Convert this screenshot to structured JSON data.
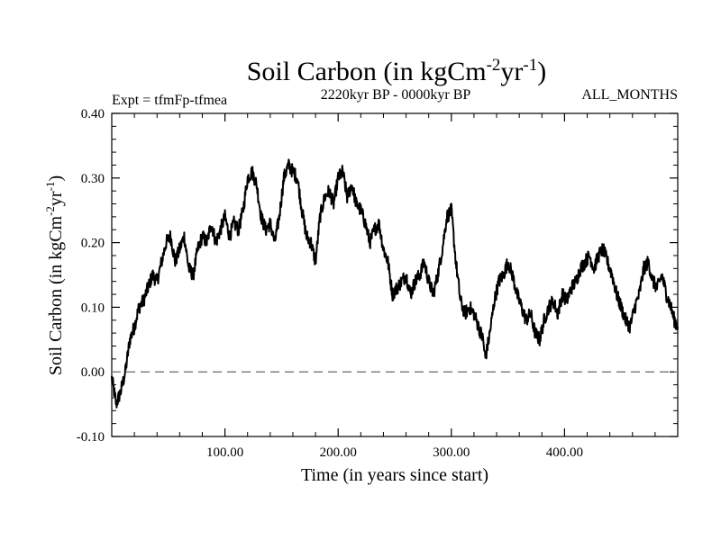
{
  "chart_data": {
    "type": "line",
    "title": "Soil Carbon (in kgCm",
    "title_exp1": "-2",
    "title_mid": "yr",
    "title_exp2": "-1",
    "title_end": ")",
    "subtitle_left": "Expt = tfmFp-tfmea",
    "subtitle_center": "2220kyr BP - 0000kyr BP",
    "subtitle_right": "ALL_MONTHS",
    "xlabel": "Time (in years since start)",
    "ylabel_base": "Soil Carbon (in kgCm",
    "ylabel_exp1": "-2",
    "ylabel_mid": "yr",
    "ylabel_exp2": "-1",
    "ylabel_end": ")",
    "xlim": [
      0,
      500
    ],
    "ylim": [
      -0.1,
      0.4
    ],
    "xticks": [
      100,
      200,
      300,
      400
    ],
    "xtick_labels": [
      "100.00",
      "200.00",
      "300.00",
      "400.00"
    ],
    "yticks": [
      -0.1,
      0.0,
      0.1,
      0.2,
      0.3,
      0.4
    ],
    "ytick_labels": [
      "-0.10",
      "0.00",
      "0.10",
      "0.20",
      "0.30",
      "0.40"
    ],
    "reference_line": {
      "y": 0.0,
      "style": "dashed",
      "color": "#808080"
    },
    "series": [
      {
        "name": "Soil Carbon",
        "color": "#000000",
        "points": [
          [
            0,
            -0.01
          ],
          [
            4,
            -0.05
          ],
          [
            8,
            -0.03
          ],
          [
            12,
            0.0
          ],
          [
            16,
            0.05
          ],
          [
            20,
            0.07
          ],
          [
            24,
            0.1
          ],
          [
            28,
            0.11
          ],
          [
            32,
            0.13
          ],
          [
            36,
            0.15
          ],
          [
            40,
            0.14
          ],
          [
            44,
            0.17
          ],
          [
            48,
            0.2
          ],
          [
            52,
            0.21
          ],
          [
            56,
            0.17
          ],
          [
            60,
            0.19
          ],
          [
            64,
            0.21
          ],
          [
            68,
            0.16
          ],
          [
            72,
            0.15
          ],
          [
            76,
            0.19
          ],
          [
            80,
            0.21
          ],
          [
            84,
            0.2
          ],
          [
            88,
            0.23
          ],
          [
            92,
            0.2
          ],
          [
            96,
            0.22
          ],
          [
            100,
            0.24
          ],
          [
            104,
            0.21
          ],
          [
            108,
            0.23
          ],
          [
            112,
            0.22
          ],
          [
            116,
            0.25
          ],
          [
            120,
            0.3
          ],
          [
            124,
            0.31
          ],
          [
            128,
            0.29
          ],
          [
            132,
            0.24
          ],
          [
            136,
            0.22
          ],
          [
            140,
            0.23
          ],
          [
            144,
            0.2
          ],
          [
            148,
            0.24
          ],
          [
            152,
            0.3
          ],
          [
            156,
            0.32
          ],
          [
            160,
            0.31
          ],
          [
            164,
            0.3
          ],
          [
            168,
            0.25
          ],
          [
            172,
            0.21
          ],
          [
            176,
            0.2
          ],
          [
            180,
            0.17
          ],
          [
            184,
            0.24
          ],
          [
            188,
            0.27
          ],
          [
            192,
            0.28
          ],
          [
            196,
            0.26
          ],
          [
            200,
            0.3
          ],
          [
            204,
            0.31
          ],
          [
            208,
            0.27
          ],
          [
            212,
            0.29
          ],
          [
            216,
            0.26
          ],
          [
            220,
            0.25
          ],
          [
            224,
            0.23
          ],
          [
            228,
            0.2
          ],
          [
            232,
            0.22
          ],
          [
            236,
            0.23
          ],
          [
            240,
            0.19
          ],
          [
            244,
            0.17
          ],
          [
            248,
            0.12
          ],
          [
            252,
            0.13
          ],
          [
            256,
            0.14
          ],
          [
            260,
            0.15
          ],
          [
            264,
            0.12
          ],
          [
            268,
            0.14
          ],
          [
            272,
            0.15
          ],
          [
            276,
            0.17
          ],
          [
            280,
            0.14
          ],
          [
            284,
            0.12
          ],
          [
            288,
            0.15
          ],
          [
            292,
            0.19
          ],
          [
            296,
            0.24
          ],
          [
            300,
            0.25
          ],
          [
            304,
            0.17
          ],
          [
            308,
            0.11
          ],
          [
            312,
            0.09
          ],
          [
            316,
            0.1
          ],
          [
            320,
            0.09
          ],
          [
            324,
            0.07
          ],
          [
            328,
            0.05
          ],
          [
            330,
            0.02
          ],
          [
            334,
            0.06
          ],
          [
            338,
            0.11
          ],
          [
            342,
            0.14
          ],
          [
            346,
            0.15
          ],
          [
            350,
            0.17
          ],
          [
            354,
            0.15
          ],
          [
            358,
            0.12
          ],
          [
            362,
            0.1
          ],
          [
            366,
            0.08
          ],
          [
            370,
            0.09
          ],
          [
            374,
            0.06
          ],
          [
            378,
            0.05
          ],
          [
            382,
            0.08
          ],
          [
            386,
            0.1
          ],
          [
            390,
            0.11
          ],
          [
            394,
            0.09
          ],
          [
            398,
            0.12
          ],
          [
            402,
            0.11
          ],
          [
            406,
            0.13
          ],
          [
            410,
            0.14
          ],
          [
            414,
            0.16
          ],
          [
            418,
            0.17
          ],
          [
            422,
            0.18
          ],
          [
            426,
            0.16
          ],
          [
            430,
            0.18
          ],
          [
            434,
            0.19
          ],
          [
            438,
            0.17
          ],
          [
            442,
            0.15
          ],
          [
            446,
            0.12
          ],
          [
            450,
            0.1
          ],
          [
            454,
            0.08
          ],
          [
            458,
            0.07
          ],
          [
            462,
            0.1
          ],
          [
            466,
            0.12
          ],
          [
            470,
            0.16
          ],
          [
            474,
            0.17
          ],
          [
            478,
            0.14
          ],
          [
            482,
            0.13
          ],
          [
            486,
            0.15
          ],
          [
            490,
            0.12
          ],
          [
            494,
            0.1
          ],
          [
            497,
            0.08
          ],
          [
            500,
            0.07
          ]
        ]
      }
    ]
  }
}
